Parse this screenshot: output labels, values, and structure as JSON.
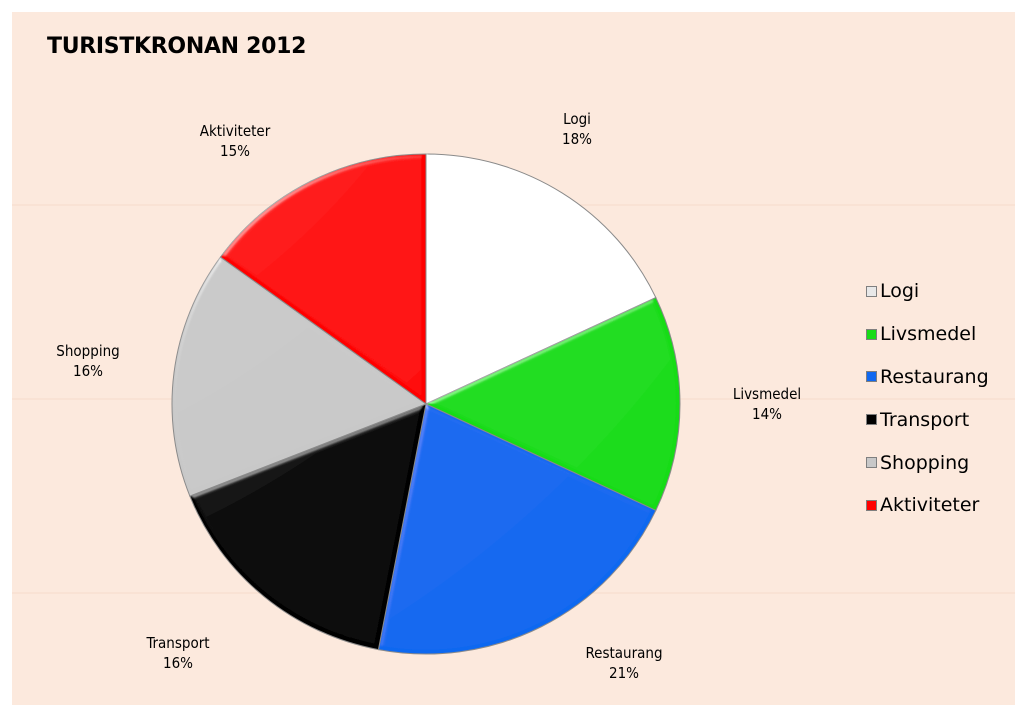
{
  "chart_data": {
    "type": "pie",
    "title": "TURISTKRONAN 2012",
    "legend_position": "right",
    "slices": [
      {
        "label": "Logi",
        "value": 18,
        "value_text": "18%",
        "color": "#ffffff",
        "swatch": "#e8e8e8"
      },
      {
        "label": "Livsmedel",
        "value": 14,
        "value_text": "14%",
        "color": "#18dc18",
        "swatch": "#18dc18"
      },
      {
        "label": "Restaurang",
        "value": 21,
        "value_text": "21%",
        "color": "#1068f0",
        "swatch": "#1068f0"
      },
      {
        "label": "Transport",
        "value": 16,
        "value_text": "16%",
        "color": "#000000",
        "swatch": "#000000"
      },
      {
        "label": "Shopping",
        "value": 16,
        "value_text": "16%",
        "color": "#c8c8c8",
        "swatch": "#c8c8c8"
      },
      {
        "label": "Aktiviteter",
        "value": 15,
        "value_text": "15%",
        "color": "#ff0000",
        "swatch": "#ff0000"
      }
    ]
  }
}
